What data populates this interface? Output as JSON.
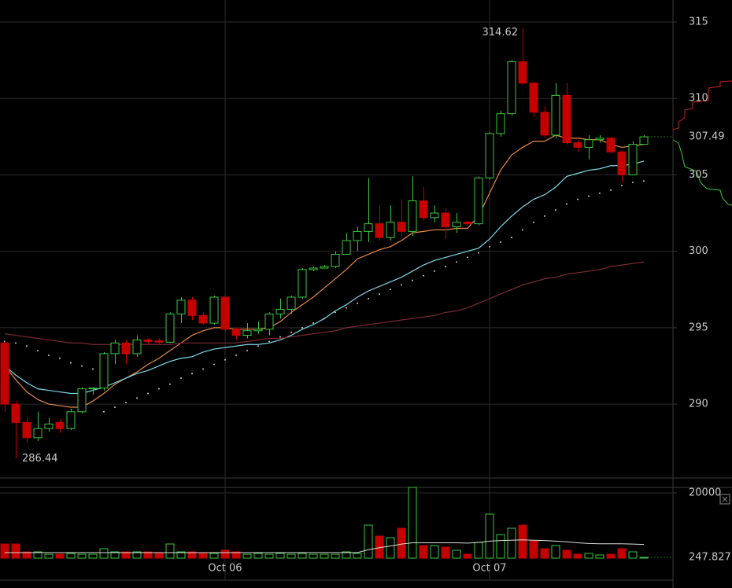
{
  "chart_data": [
    {
      "type": "candlestick",
      "categories": [
        null,
        null,
        null,
        null,
        null,
        null,
        null,
        null,
        null,
        null,
        null,
        null,
        null,
        null,
        null,
        null,
        null,
        null,
        null,
        null,
        "Oct 06",
        null,
        null,
        null,
        null,
        null,
        null,
        null,
        null,
        null,
        null,
        null,
        null,
        null,
        null,
        null,
        null,
        null,
        null,
        null,
        null,
        null,
        null,
        null,
        "Oct 07",
        null,
        null,
        null,
        null,
        null,
        null,
        null,
        null,
        null,
        null,
        null,
        null,
        null,
        null
      ],
      "open": [
        294,
        290,
        288.8,
        287.8,
        288.4,
        288.8,
        288.4,
        289.5,
        291,
        291.05,
        293.3,
        294,
        293.3,
        294.2,
        294.15,
        294.05,
        295.9,
        296.8,
        295.8,
        295.3,
        297,
        294.9,
        294.5,
        294.8,
        294.9,
        295.9,
        296.2,
        297,
        298.8,
        298.9,
        299,
        299.8,
        300.7,
        301.3,
        301.8,
        300.9,
        301.9,
        301.3,
        303.3,
        302.2,
        302.5,
        301.6,
        301.9,
        301.8,
        304.8,
        307.7,
        309,
        312.4,
        311,
        309.1,
        307.6,
        310.2,
        307.1,
        306.8,
        307.3,
        307.4,
        306.5,
        305,
        307
      ],
      "high": [
        294.1,
        290.2,
        289.2,
        289.5,
        289.1,
        289,
        289.7,
        291.1,
        291.1,
        293.4,
        294.2,
        294.2,
        294.5,
        294.3,
        294.3,
        296,
        297,
        297,
        296,
        297.1,
        297.1,
        295,
        295.3,
        295.4,
        296,
        296.9,
        297.1,
        298.9,
        299,
        299.1,
        300,
        301.2,
        301.6,
        304.8,
        303,
        303,
        303.4,
        304.9,
        304.2,
        303,
        302.8,
        302.5,
        302,
        304.9,
        307.8,
        309.2,
        312.5,
        314.62,
        311.1,
        309.5,
        311,
        311,
        307.3,
        307.6,
        307.6,
        307.5,
        306.6,
        307.2,
        307.6
      ],
      "low": [
        289.5,
        286.44,
        287.5,
        287.6,
        288.2,
        288.1,
        288.3,
        289.4,
        290.6,
        290.9,
        292.6,
        292.6,
        293.1,
        293.9,
        293.9,
        294,
        295.3,
        295.5,
        295.2,
        295.2,
        294.7,
        294.2,
        294.3,
        294.6,
        294.5,
        295.6,
        295.9,
        296.9,
        298.7,
        298.9,
        298.9,
        299.8,
        300,
        300.6,
        300.7,
        300.7,
        301,
        301,
        302,
        301.9,
        300.8,
        301.2,
        301.7,
        301.7,
        304.7,
        307.5,
        308.9,
        310.9,
        308.8,
        307.4,
        307.4,
        307,
        306.5,
        306,
        307.1,
        306.4,
        304.5,
        305,
        307
      ],
      "close": [
        290,
        288.8,
        287.8,
        288.4,
        288.7,
        288.4,
        289.5,
        291,
        291.05,
        293.3,
        294,
        293.3,
        294.2,
        294.1,
        294.05,
        295.9,
        296.8,
        295.8,
        295.3,
        297,
        294.9,
        294.5,
        294.8,
        294.9,
        295.9,
        296.2,
        297,
        298.8,
        298.9,
        299,
        299.8,
        300.7,
        301.3,
        301.8,
        300.9,
        301.9,
        301.3,
        303.3,
        302.2,
        302.5,
        301.6,
        301.9,
        301.8,
        304.8,
        307.7,
        309,
        312.4,
        311,
        309.1,
        307.6,
        310.2,
        307.1,
        306.8,
        307.3,
        307.4,
        306.5,
        305,
        307,
        307.49
      ],
      "up_color": "#3cc83c",
      "down_color": "#c40000",
      "lines": [
        {
          "color": "#e8894a",
          "values": [
            292.5,
            291.6,
            290.8,
            290.3,
            290,
            289.9,
            289.8,
            289.8,
            290.2,
            290.7,
            291.3,
            291.7,
            292.1,
            292.6,
            293,
            293.5,
            294,
            294.5,
            294.8,
            295,
            295,
            294.9,
            294.9,
            294.9,
            295,
            295.4,
            296,
            296.5,
            297,
            297.6,
            298.2,
            298.8,
            299.5,
            299.8,
            300.1,
            300.3,
            300.7,
            301.2,
            301.3,
            301.4,
            301.4,
            301.5,
            301.5,
            302.3,
            303.8,
            305.3,
            306.3,
            306.8,
            307.2,
            307.2,
            307.6,
            307.4,
            307.4,
            307.3,
            307.3,
            307,
            306.8,
            306.9,
            307
          ]
        },
        {
          "color": "#7fd8e8",
          "values": [
            292.5,
            291.9,
            291.4,
            291,
            290.9,
            290.8,
            290.7,
            290.7,
            290.9,
            291.1,
            291.4,
            291.7,
            292,
            292.2,
            292.5,
            292.8,
            293,
            293.1,
            293.4,
            293.6,
            293.7,
            293.8,
            293.9,
            293.9,
            294,
            294.2,
            294.5,
            294.9,
            295.2,
            295.6,
            296.1,
            296.5,
            297,
            297.4,
            297.7,
            298,
            298.3,
            298.7,
            299.1,
            299.4,
            299.6,
            299.8,
            300,
            300.2,
            300.8,
            301.6,
            302.3,
            302.9,
            303.4,
            303.7,
            304.2,
            304.9,
            305.1,
            305.3,
            305.4,
            305.6,
            305.6,
            305.7,
            305.9
          ]
        },
        {
          "color": "#7a2a34",
          "values": [
            294.6,
            294.5,
            294.4,
            294.3,
            294.2,
            294.1,
            294,
            294,
            293.9,
            293.9,
            293.9,
            293.9,
            293.9,
            293.9,
            293.9,
            293.9,
            294,
            294,
            294,
            294,
            294,
            294,
            294.1,
            294.2,
            294.3,
            294.3,
            294.4,
            294.5,
            294.6,
            294.7,
            294.8,
            295,
            295.1,
            295.2,
            295.3,
            295.4,
            295.5,
            295.6,
            295.7,
            295.8,
            296,
            296.1,
            296.3,
            296.6,
            296.9,
            297.2,
            297.5,
            297.8,
            298,
            298.2,
            298.3,
            298.5,
            298.6,
            298.7,
            298.8,
            299,
            299.1,
            299.2,
            299.3
          ]
        }
      ],
      "dots": {
        "color": "#cccccc",
        "values": [
          294.1,
          294,
          293.8,
          293.5,
          293.2,
          293,
          292.7,
          292.5,
          292.3,
          289.5,
          289.8,
          290.1,
          290.4,
          290.7,
          291,
          291.3,
          291.7,
          292,
          292.3,
          292.6,
          292.9,
          293.2,
          293.5,
          293.8,
          294.1,
          294.4,
          294.7,
          295,
          295.3,
          295.6,
          296,
          296.3,
          296.6,
          296.9,
          297.2,
          297.5,
          297.8,
          298.1,
          298.4,
          298.7,
          299,
          299.3,
          299.6,
          299.9,
          300.3,
          300.6,
          300.9,
          301.4,
          301.9,
          302.3,
          302.7,
          303.1,
          303.4,
          303.6,
          303.8,
          304,
          304.3,
          304.5,
          304.6
        ]
      },
      "ylim": [
        285.17,
        316.44
      ],
      "yticks": [
        290,
        295,
        300,
        305,
        310,
        315
      ],
      "grid": true
    },
    {
      "type": "bar",
      "values": [
        4340,
        4340,
        1930,
        1930,
        1200,
        1200,
        1450,
        1200,
        1200,
        2890,
        1930,
        1930,
        1930,
        1930,
        1450,
        4340,
        1930,
        1930,
        1450,
        1450,
        2410,
        1930,
        1200,
        1450,
        1200,
        1450,
        1200,
        1450,
        1200,
        1200,
        1200,
        1930,
        1450,
        10120,
        6750,
        6270,
        9160,
        21700,
        3860,
        3860,
        3370,
        2410,
        1200,
        4820,
        13500,
        7230,
        9160,
        10120,
        5300,
        2890,
        3860,
        2410,
        1200,
        1450,
        960,
        1200,
        2890,
        1930,
        247.827
      ],
      "line": {
        "color": "#dddddd",
        "values": [
          1700,
          1700,
          1700,
          1700,
          1700,
          1700,
          1700,
          1700,
          1700,
          1700,
          1700,
          1700,
          1700,
          1700,
          1700,
          1700,
          1700,
          1700,
          1700,
          1700,
          1700,
          1700,
          1700,
          1700,
          1700,
          1700,
          1700,
          1700,
          1700,
          1700,
          1700,
          1700,
          1700,
          2600,
          3200,
          3700,
          4300,
          4700,
          4700,
          4700,
          4700,
          4700,
          4600,
          4800,
          5200,
          5400,
          5500,
          5600,
          5500,
          5400,
          5200,
          5000,
          4700,
          4500,
          4400,
          4400,
          4400,
          4300,
          4200
        ]
      },
      "ylim": [
        0,
        21700
      ],
      "yticks": [
        20000
      ],
      "grid": true
    }
  ]
}
